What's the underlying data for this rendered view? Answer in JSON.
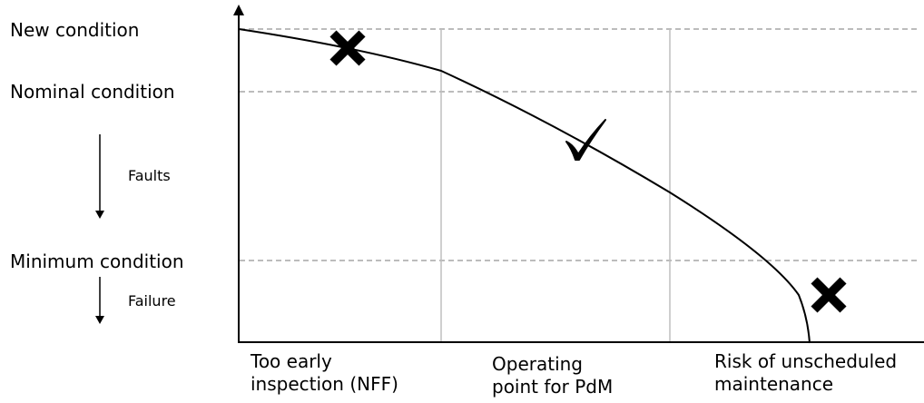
{
  "conditions": {
    "new": "New condition",
    "nominal": "Nominal condition",
    "minimum": "Minimum condition"
  },
  "arrows": {
    "faults": "Faults",
    "failure": "Failure"
  },
  "zones": {
    "early": {
      "line1": "Too early",
      "line2": "inspection (NFF)",
      "marker": "cross-icon"
    },
    "operating": {
      "line1": "Operating",
      "line2": "point for PdM",
      "marker": "check-icon"
    },
    "risk": {
      "line1": "Risk of unscheduled",
      "line2": "maintenance",
      "marker": "cross-icon"
    }
  },
  "colors": {
    "axis": "#000000",
    "curve": "#000000",
    "dashed_gridline": "#a6a6a6",
    "zone_divider": "#bfbfbf"
  }
}
